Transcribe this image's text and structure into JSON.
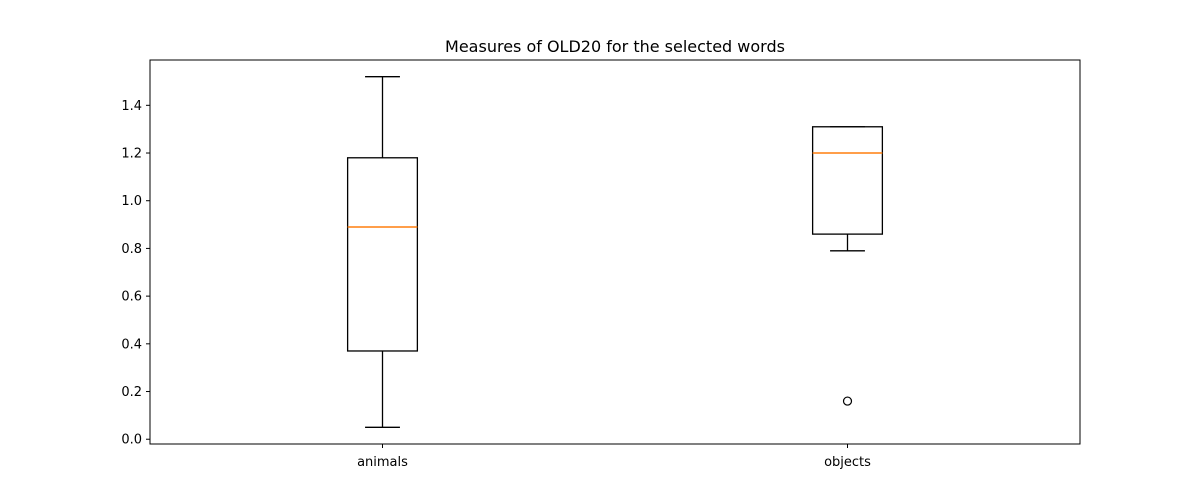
{
  "chart_data": {
    "type": "box",
    "title": "Measures of OLD20 for the selected words",
    "xlabel": "",
    "ylabel": "",
    "categories": [
      "animals",
      "objects"
    ],
    "boxes": [
      {
        "name": "animals",
        "whisker_low": 0.05,
        "q1": 0.37,
        "median": 0.89,
        "q3": 1.18,
        "whisker_high": 1.52,
        "outliers": []
      },
      {
        "name": "objects",
        "whisker_low": 0.79,
        "q1": 0.86,
        "median": 1.2,
        "q3": 1.31,
        "whisker_high": 1.31,
        "outliers": [
          0.16
        ]
      }
    ],
    "ylim": [
      -0.02,
      1.59
    ],
    "yticks": [
      "0.0",
      "0.2",
      "0.4",
      "0.6",
      "0.8",
      "1.0",
      "1.2",
      "1.4"
    ],
    "grid": false,
    "colors": {
      "median": "#ff7f0e",
      "box": "#000000",
      "axes": "#000000"
    }
  }
}
